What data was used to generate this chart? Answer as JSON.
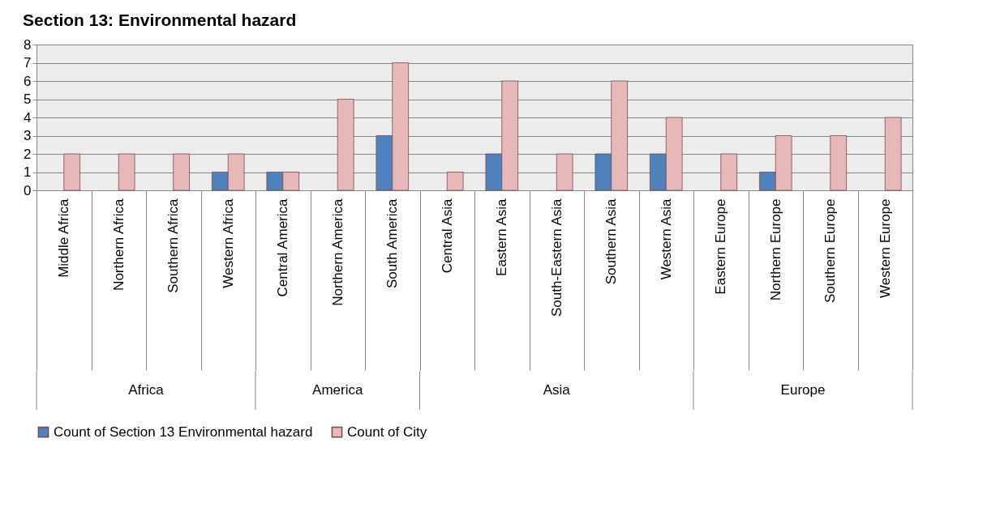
{
  "chart_data": {
    "type": "bar",
    "title": "Section 13: Environmental hazard",
    "categories": [
      "Middle Africa",
      "Northern Africa",
      "Southern Africa",
      "Western Africa",
      "Central America",
      "Northern America",
      "South America",
      "Central Asia",
      "Eastern Asia",
      "South-Eastern Asia",
      "Southern Asia",
      "Western Asia",
      "Eastern Europe",
      "Northern Europe",
      "Southern Europe",
      "Western Europe"
    ],
    "series": [
      {
        "name": "Count of Section 13 Environmental hazard",
        "color": "#4f81bd",
        "values": [
          null,
          null,
          null,
          1,
          1,
          null,
          3,
          null,
          2,
          null,
          2,
          2,
          null,
          1,
          null,
          null
        ]
      },
      {
        "name": "Count of City",
        "color": "#e6b9b8",
        "values": [
          2,
          2,
          2,
          2,
          1,
          5,
          7,
          1,
          6,
          2,
          6,
          4,
          2,
          3,
          3,
          4
        ]
      }
    ],
    "ylim": [
      0,
      8
    ],
    "yticks": [
      0,
      1,
      2,
      3,
      4,
      5,
      6,
      7,
      8
    ],
    "grid": "y",
    "legend": "bottom",
    "annotations": [
      "Africa",
      "America",
      "Asia",
      "Europe"
    ]
  }
}
